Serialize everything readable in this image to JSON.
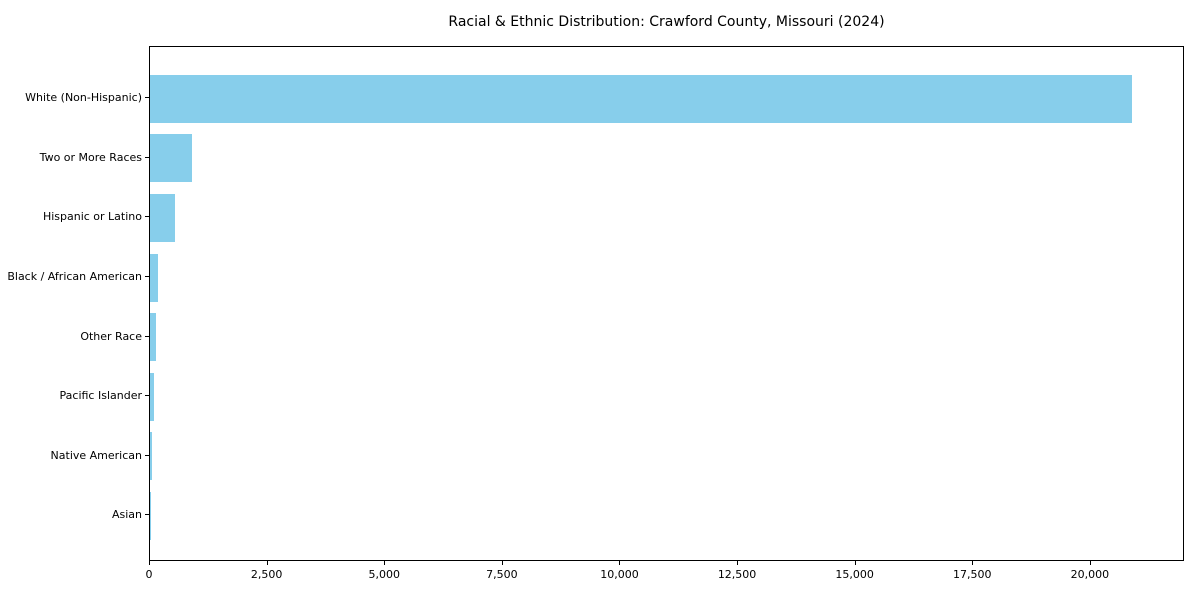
{
  "chart_data": {
    "type": "bar",
    "orientation": "horizontal",
    "title": "Racial & Ethnic Distribution: Crawford County, Missouri (2024)",
    "categories": [
      "White (Non-Hispanic)",
      "Two or More Races",
      "Hispanic or Latino",
      "Black / African American",
      "Other Race",
      "Pacific Islander",
      "Native American",
      "Asian"
    ],
    "values": [
      20918,
      905,
      540,
      180,
      120,
      75,
      45,
      20
    ],
    "xlabel": "",
    "ylabel": "",
    "xlim": [
      0,
      22000
    ],
    "xticks": [
      {
        "value": 0,
        "label": "0"
      },
      {
        "value": 2500,
        "label": "2,500"
      },
      {
        "value": 5000,
        "label": "5,000"
      },
      {
        "value": 7500,
        "label": "7,500"
      },
      {
        "value": 10000,
        "label": "10,000"
      },
      {
        "value": 12500,
        "label": "12,500"
      },
      {
        "value": 15000,
        "label": "15,000"
      },
      {
        "value": 17500,
        "label": "17,500"
      },
      {
        "value": 20000,
        "label": "20,000"
      }
    ],
    "bar_color": "#87CEEB",
    "frame_color": "#000000",
    "background_color": "#ffffff",
    "grid": false,
    "legend": null
  }
}
